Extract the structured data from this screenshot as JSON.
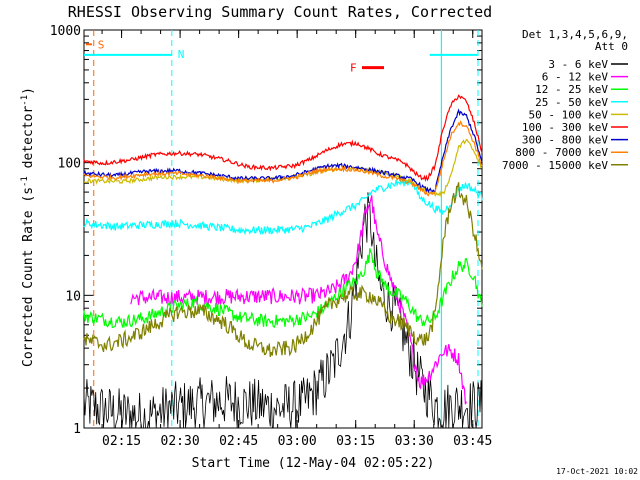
{
  "chart_data": {
    "type": "line",
    "title": "RHESSI Observing Summary Count Rates, Corrected",
    "xlabel": "Start Time (12-May-04 02:05:22)",
    "ylabel": "Corrected Count Rate (s",
    "ylabel_sup": "-1",
    "ylabel_tail": " detector",
    "ylabel_sup2": "-1",
    "ylabel_end": ")",
    "yscale": "log",
    "ylim": [
      1,
      1000
    ],
    "xlim_minutes": [
      0,
      102
    ],
    "yticks": [
      {
        "value": 1,
        "label": "1"
      },
      {
        "value": 10,
        "label": "10"
      },
      {
        "value": 100,
        "label": "100"
      },
      {
        "value": 1000,
        "label": "1000"
      }
    ],
    "xticks": [
      {
        "minute": 9.63,
        "label": "02:15"
      },
      {
        "minute": 24.63,
        "label": "02:30"
      },
      {
        "minute": 39.63,
        "label": "02:45"
      },
      {
        "minute": 54.63,
        "label": "03:00"
      },
      {
        "minute": 69.63,
        "label": "03:15"
      },
      {
        "minute": 84.63,
        "label": "03:30"
      },
      {
        "minute": 99.63,
        "label": "03:45"
      }
    ],
    "legend_header": [
      "Det 1,3,4,5,6,9,",
      "Att 0"
    ],
    "series": [
      {
        "name": "3 - 6 keV",
        "color": "#000000",
        "x": [
          0,
          8,
          16,
          22,
          28,
          36,
          44,
          50,
          56,
          60,
          64,
          66,
          68,
          70,
          72,
          73.6,
          74,
          76,
          80,
          86,
          90,
          92,
          95,
          98,
          100,
          102
        ],
        "y": [
          1.5,
          1.3,
          1.2,
          1.4,
          1.5,
          1.6,
          1.5,
          1.4,
          1.5,
          2.0,
          3.0,
          4.5,
          6.5,
          15,
          38,
          38,
          22,
          11,
          7.5,
          2.3,
          1.5,
          1.4,
          1.5,
          1.5,
          1.5,
          1.5
        ]
      },
      {
        "name": "6 - 12 keV",
        "color": "#ff00ff",
        "x": [
          12,
          20,
          30,
          40,
          50,
          56,
          60,
          64,
          68,
          70,
          72,
          73.6,
          75,
          78,
          80,
          82,
          84,
          86,
          88,
          90,
          92,
          94,
          96,
          98
        ],
        "y": [
          9.6,
          9.6,
          9.7,
          9.8,
          9.8,
          9.8,
          10,
          11,
          14,
          20,
          40,
          55,
          30,
          15,
          10,
          7,
          4,
          2.2,
          2.4,
          3.0,
          3.8,
          3.8,
          3.3,
          1.5
        ]
      },
      {
        "name": "12 - 25 keV",
        "color": "#00ff00",
        "x": [
          0,
          6,
          10,
          16,
          22,
          28,
          34,
          40,
          46,
          52,
          58,
          62,
          66,
          70,
          72,
          73.6,
          75,
          78,
          82,
          86,
          88,
          90,
          92,
          94,
          96,
          98,
          100,
          102
        ],
        "y": [
          7.0,
          6.5,
          6.3,
          6.8,
          8.0,
          8.8,
          8.0,
          6.8,
          6.4,
          6.4,
          6.9,
          8.2,
          10.8,
          13,
          16,
          22,
          15,
          11,
          9.5,
          6.5,
          6.4,
          6.8,
          9.5,
          13,
          16.5,
          17,
          14,
          8
        ]
      },
      {
        "name": "25 - 50 keV",
        "color": "#00ffff",
        "x": [
          0,
          8,
          16,
          24,
          32,
          40,
          48,
          54,
          58,
          62,
          66,
          70,
          72,
          73.6,
          76,
          80,
          84,
          86,
          88,
          90,
          92,
          94,
          96,
          98,
          100,
          102
        ],
        "y": [
          35,
          33,
          34,
          35,
          33,
          31,
          31,
          31.5,
          33,
          37,
          43,
          48,
          53,
          60,
          64,
          70,
          72,
          55,
          50,
          45,
          42,
          50,
          63,
          68,
          62,
          55
        ]
      },
      {
        "name": "50 - 100 keV",
        "color": "#ccbb00",
        "x": [
          0,
          10,
          20,
          30,
          40,
          48,
          56,
          62,
          66,
          70,
          73.6,
          76,
          80,
          84,
          86,
          88,
          90,
          92,
          94,
          96,
          98,
          100,
          102
        ],
        "y": [
          73,
          72,
          78,
          78,
          73,
          75,
          80,
          87,
          90,
          90,
          87,
          85,
          80,
          72,
          65,
          62,
          58,
          58,
          80,
          130,
          150,
          120,
          90
        ]
      },
      {
        "name": "100 - 300 keV",
        "color": "#ff0000",
        "x": [
          0,
          5,
          12,
          18,
          24,
          30,
          36,
          42,
          48,
          54,
          58,
          62,
          66,
          70,
          73.6,
          75,
          78,
          82,
          86,
          88,
          90,
          92,
          94,
          96,
          98,
          100,
          102
        ],
        "y": [
          103,
          99,
          105,
          115,
          118,
          115,
          105,
          93,
          91,
          95,
          106,
          123,
          138,
          140,
          125,
          118,
          110,
          100,
          78,
          76,
          95,
          180,
          270,
          320,
          290,
          200,
          120
        ]
      },
      {
        "name": "300 - 800 keV",
        "color": "#0000cc",
        "x": [
          0,
          8,
          16,
          24,
          32,
          40,
          48,
          54,
          58,
          62,
          66,
          70,
          73.6,
          76,
          80,
          84,
          86,
          88,
          90,
          92,
          94,
          96,
          98,
          100,
          102
        ],
        "y": [
          83,
          80,
          86,
          87,
          82,
          76,
          76,
          80,
          87,
          94,
          95,
          92,
          88,
          85,
          80,
          75,
          68,
          62,
          62,
          110,
          180,
          240,
          225,
          160,
          100
        ]
      },
      {
        "name": "800 - 7000 keV",
        "color": "#ff8000",
        "x": [
          0,
          8,
          16,
          24,
          32,
          40,
          48,
          54,
          58,
          62,
          66,
          70,
          73.6,
          76,
          80,
          84,
          86,
          88,
          90,
          92,
          94,
          96,
          98,
          100,
          102
        ],
        "y": [
          80,
          77,
          82,
          83,
          79,
          73,
          73,
          77,
          84,
          89,
          90,
          88,
          84,
          80,
          76,
          70,
          64,
          58,
          60,
          100,
          160,
          200,
          190,
          140,
          95
        ]
      },
      {
        "name": "7000 - 15000 keV",
        "color": "#808000",
        "x": [
          0,
          6,
          12,
          18,
          24,
          30,
          36,
          42,
          48,
          54,
          58,
          62,
          66,
          70,
          73.6,
          76,
          78,
          82,
          86,
          88,
          90,
          92,
          94,
          96,
          98,
          100,
          102
        ],
        "y": [
          4.6,
          4.2,
          4.8,
          6.0,
          7.5,
          7.6,
          6.2,
          4.3,
          3.8,
          4.1,
          5.5,
          8.0,
          9.8,
          10.3,
          10.0,
          8.5,
          7.0,
          6.0,
          4.6,
          4.7,
          7.0,
          25,
          50,
          62,
          50,
          30,
          15
        ]
      }
    ],
    "attenuator": {
      "label": "S",
      "color": "#ff6600",
      "minute": 2.5
    },
    "night_marker": {
      "label": "N",
      "color": "#00ffff",
      "minute": 22.5,
      "end_minute": 91.6,
      "level": 650
    },
    "flare_marker": {
      "label": "F",
      "color": "#ff0000",
      "start_minute": 88.6,
      "end_minute": 100.8,
      "level": 650
    },
    "flare_legend_level": 520,
    "saa_minute": 102
  },
  "footer": {
    "timestamp": "17-Oct-2021 10:02"
  }
}
